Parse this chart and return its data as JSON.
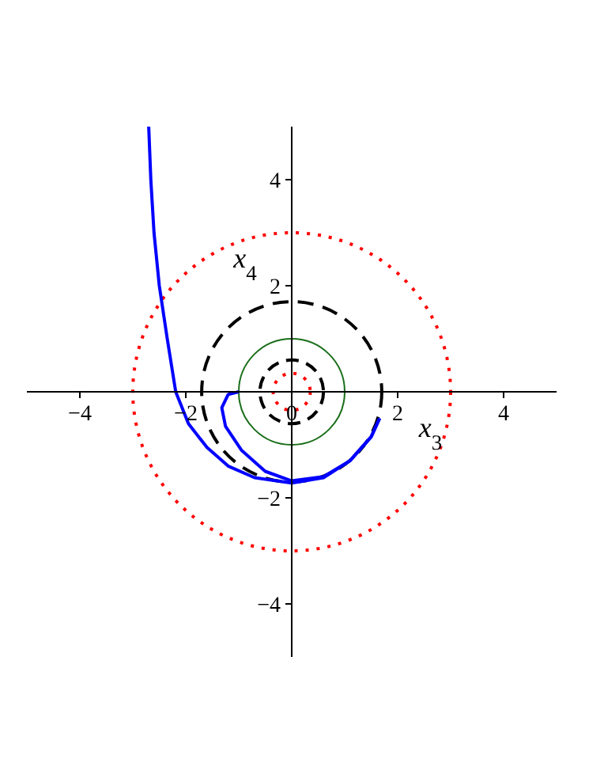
{
  "chart_data": {
    "type": "line",
    "xlabel": "x$_{3}$",
    "ylabel": "x$_{4}$",
    "xlim": [
      -5,
      5
    ],
    "ylim": [
      -5,
      5
    ],
    "xticks": [
      {
        "value": -4,
        "label": "−4"
      },
      {
        "value": -2,
        "label": "−2"
      },
      0,
      2,
      4
    ],
    "yticks": [
      {
        "value": -4,
        "label": "−4"
      },
      {
        "value": -2,
        "label": "−2"
      },
      2,
      4
    ],
    "marker": "none",
    "series": [
      {
        "color": "#0000ff",
        "line_style": "solid",
        "x": [
          -2.7,
          -2.66,
          -2.6,
          -2.5,
          -2.35,
          -2.19,
          -1.95,
          -1.6,
          -1.2,
          -0.7,
          0,
          0.6,
          1.1,
          1.5,
          1.66
        ],
        "values": [
          5,
          4,
          3,
          2,
          1,
          0,
          -0.6,
          -1.05,
          -1.4,
          -1.62,
          -1.72,
          -1.62,
          -1.3,
          -0.85,
          -0.5
        ]
      },
      {
        "color": "#0000ff",
        "line_style": "solid",
        "x": [
          -1,
          -1.2,
          -1.32,
          -1.25,
          -0.95,
          -0.5,
          0,
          0.6,
          1.1,
          1.5,
          1.66
        ],
        "values": [
          0,
          -0.05,
          -0.3,
          -0.65,
          -1.1,
          -1.5,
          -1.68,
          -1.6,
          -1.3,
          -0.85,
          -0.5
        ]
      }
    ]
  }
}
